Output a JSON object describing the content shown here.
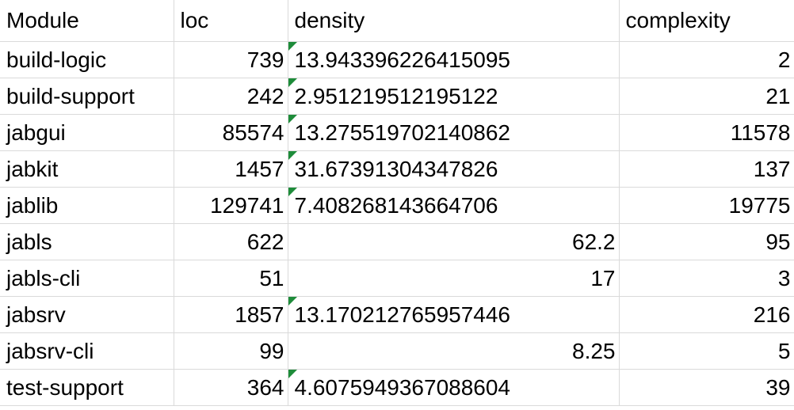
{
  "spreadsheet": {
    "headers": [
      "Module",
      "loc",
      "density",
      "complexity"
    ],
    "colors": {
      "gridline": "#dadada",
      "text_number_indicator": "#1e8c3a"
    },
    "rows": [
      {
        "module": "build-logic",
        "loc": "739",
        "density": "13.943396226415095",
        "density_is_text": true,
        "complexity": "2"
      },
      {
        "module": "build-support",
        "loc": "242",
        "density": "2.951219512195122",
        "density_is_text": true,
        "complexity": "21"
      },
      {
        "module": "jabgui",
        "loc": "85574",
        "density": "13.275519702140862",
        "density_is_text": true,
        "complexity": "11578"
      },
      {
        "module": "jabkit",
        "loc": "1457",
        "density": "31.67391304347826",
        "density_is_text": true,
        "complexity": "137"
      },
      {
        "module": "jablib",
        "loc": "129741",
        "density": "7.408268143664706",
        "density_is_text": true,
        "complexity": "19775"
      },
      {
        "module": "jabls",
        "loc": "622",
        "density": "62.2",
        "density_is_text": false,
        "complexity": "95"
      },
      {
        "module": "jabls-cli",
        "loc": "51",
        "density": "17",
        "density_is_text": false,
        "complexity": "3"
      },
      {
        "module": "jabsrv",
        "loc": "1857",
        "density": "13.170212765957446",
        "density_is_text": true,
        "complexity": "216"
      },
      {
        "module": "jabsrv-cli",
        "loc": "99",
        "density": "8.25",
        "density_is_text": false,
        "complexity": "5"
      },
      {
        "module": "test-support",
        "loc": "364",
        "density": "4.6075949367088604",
        "density_is_text": true,
        "complexity": "39"
      }
    ]
  }
}
